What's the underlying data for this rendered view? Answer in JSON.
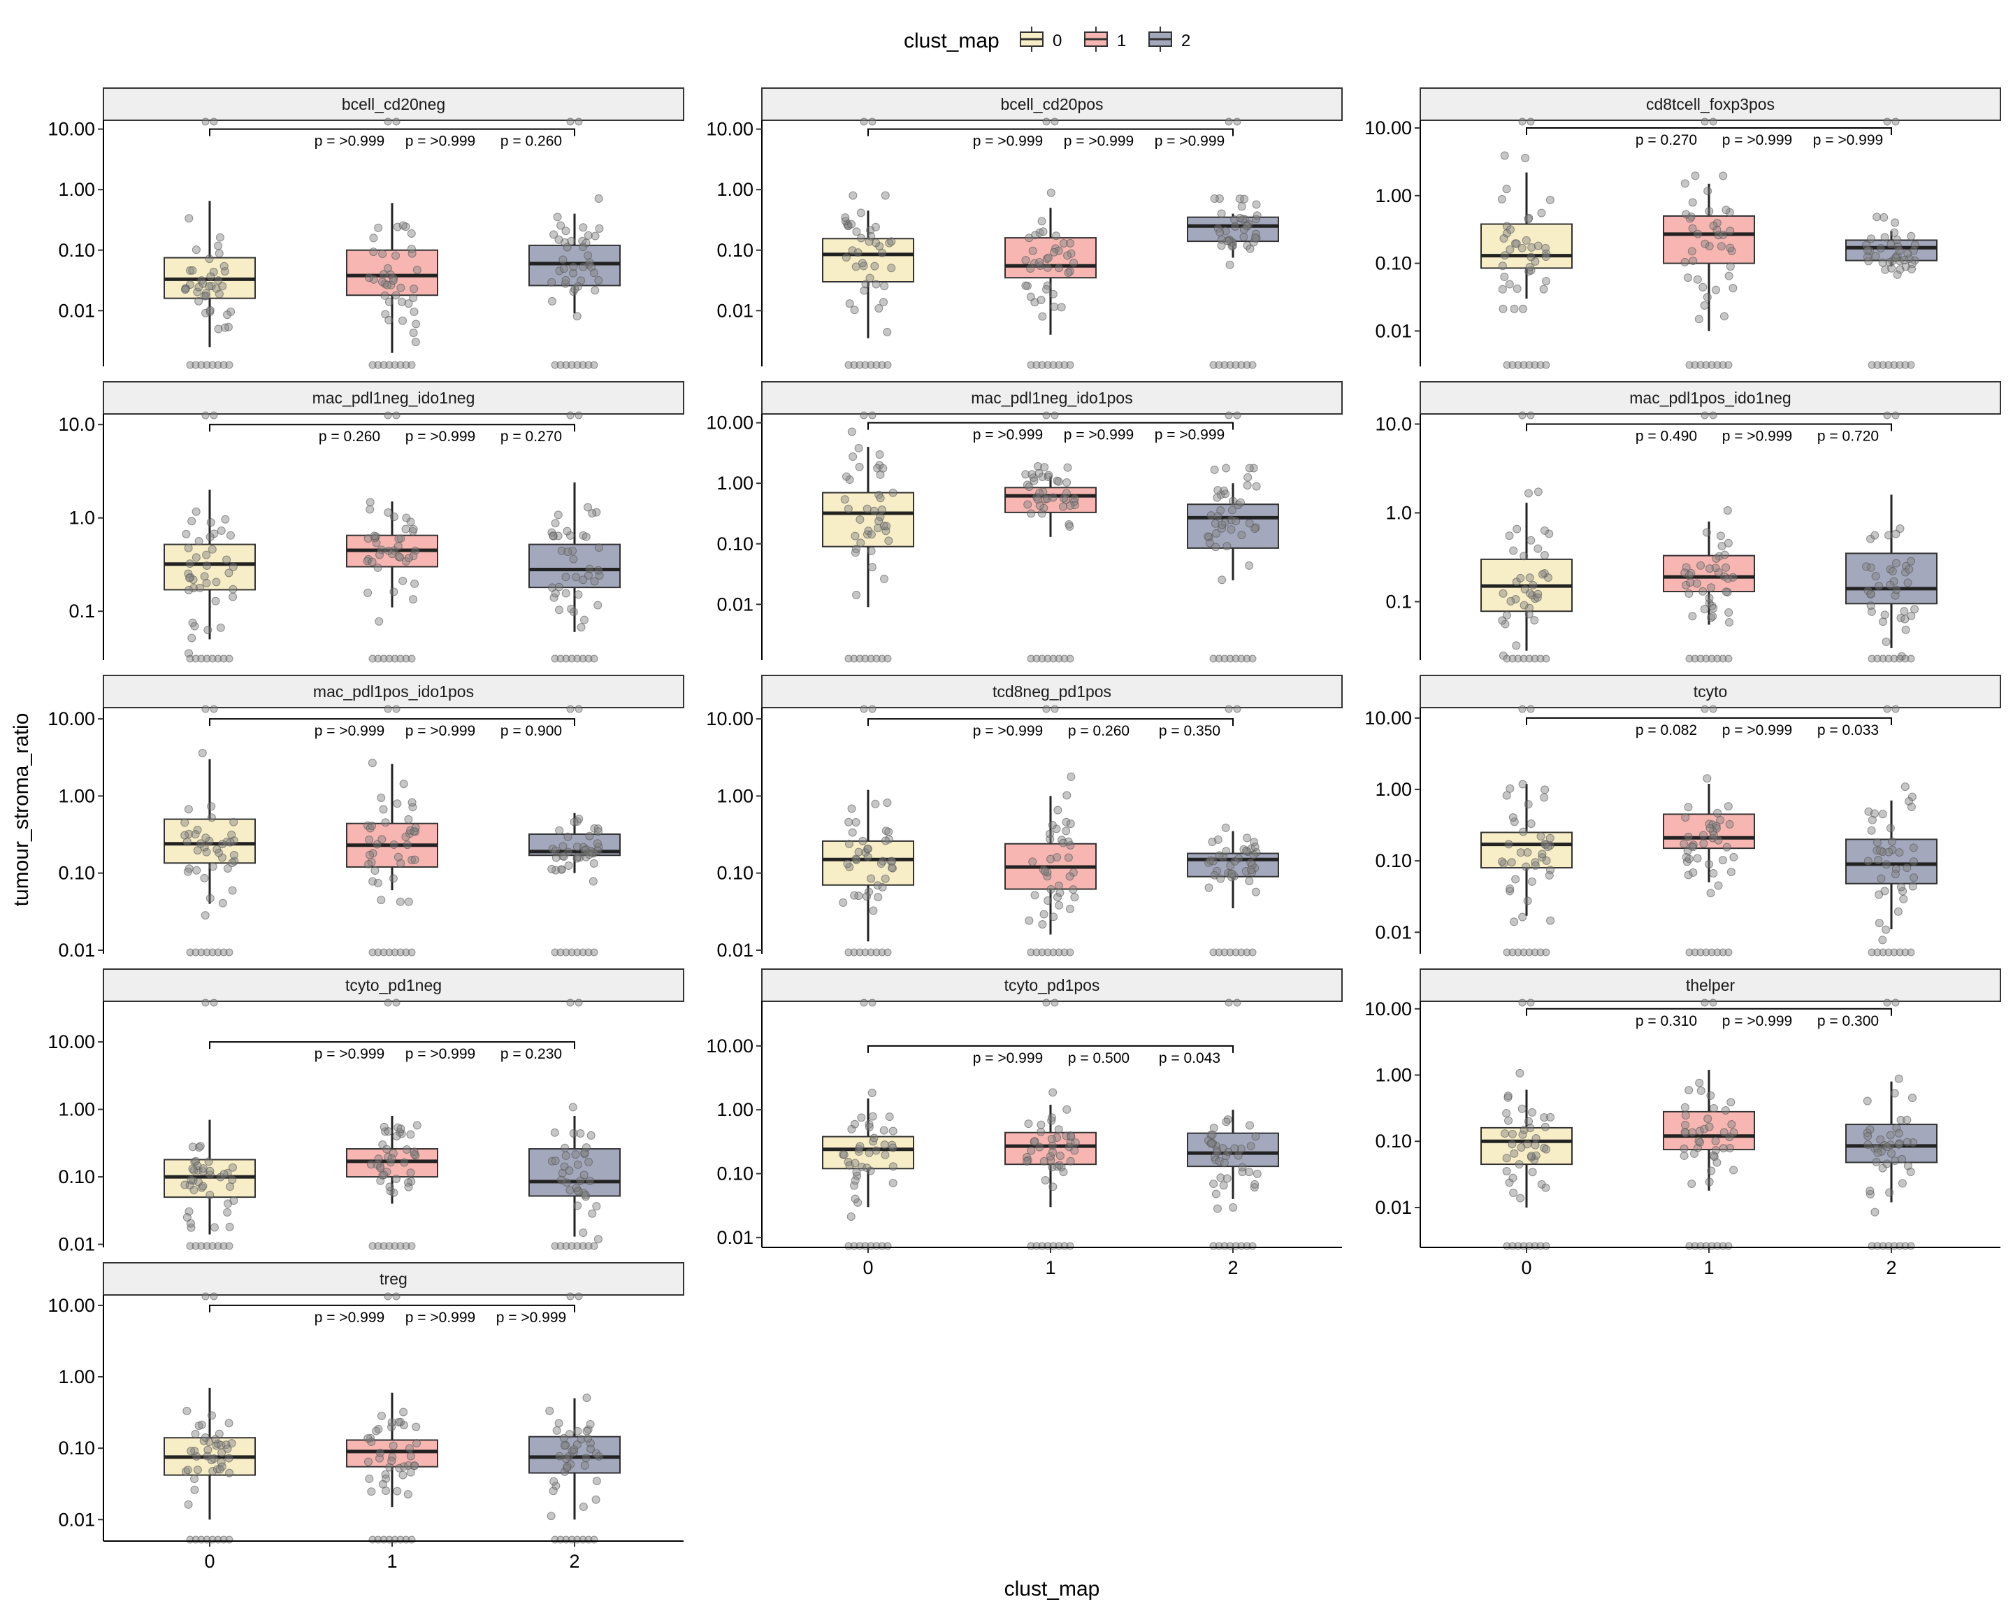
{
  "chart_data": {
    "type": "box",
    "y_scale": "log10",
    "xlabel": "clust_map",
    "ylabel": "tumour_stroma_ratio",
    "categories": [
      "0",
      "1",
      "2"
    ],
    "legend": {
      "title": "clust_map",
      "position": "top",
      "items": [
        {
          "label": "0",
          "color": "#F7EDC7"
        },
        {
          "label": "1",
          "color": "#F7B6B2"
        },
        {
          "label": "2",
          "color": "#A3A8BC"
        }
      ]
    },
    "colors": {
      "fill_0": "#F7EDC7",
      "fill_1": "#F7B6B2",
      "fill_2": "#A3A8BC",
      "strip_bg": "#EFEFEF",
      "points": "#808080"
    },
    "facets": [
      {
        "title": "bcell_cd20neg",
        "y_ticks": [
          "10.00",
          "1.00",
          "0.10",
          "0.01"
        ],
        "ylim": [
          0.0012,
          14
        ],
        "p_labels": [
          "p = >0.999",
          "p = >0.999",
          "p = 0.260"
        ],
        "boxes": [
          {
            "category": "0",
            "q1": 0.016,
            "median": 0.033,
            "q3": 0.075,
            "whisker_low": 0.0025,
            "whisker_high": 0.65
          },
          {
            "category": "1",
            "q1": 0.018,
            "median": 0.038,
            "q3": 0.1,
            "whisker_low": 0.002,
            "whisker_high": 0.6
          },
          {
            "category": "2",
            "q1": 0.026,
            "median": 0.06,
            "q3": 0.12,
            "whisker_low": 0.009,
            "whisker_high": 0.4
          }
        ]
      },
      {
        "title": "bcell_cd20pos",
        "y_ticks": [
          "10.00",
          "1.00",
          "0.10",
          "0.01"
        ],
        "ylim": [
          0.0012,
          14
        ],
        "p_labels": [
          "p = >0.999",
          "p = >0.999",
          "p = >0.999"
        ],
        "boxes": [
          {
            "category": "0",
            "q1": 0.03,
            "median": 0.085,
            "q3": 0.155,
            "whisker_low": 0.0035,
            "whisker_high": 0.45
          },
          {
            "category": "1",
            "q1": 0.035,
            "median": 0.055,
            "q3": 0.16,
            "whisker_low": 0.004,
            "whisker_high": 0.5
          },
          {
            "category": "2",
            "q1": 0.14,
            "median": 0.25,
            "q3": 0.35,
            "whisker_low": 0.075,
            "whisker_high": 0.4
          }
        ]
      },
      {
        "title": "cd8tcell_foxp3pos",
        "y_ticks": [
          "10.00",
          "1.00",
          "0.10",
          "0.01"
        ],
        "ylim": [
          0.003,
          13
        ],
        "p_labels": [
          "p = 0.270",
          "p = >0.999",
          "p = >0.999"
        ],
        "boxes": [
          {
            "category": "0",
            "q1": 0.085,
            "median": 0.13,
            "q3": 0.38,
            "whisker_low": 0.03,
            "whisker_high": 2.2
          },
          {
            "category": "1",
            "q1": 0.1,
            "median": 0.27,
            "q3": 0.5,
            "whisker_low": 0.01,
            "whisker_high": 1.5
          },
          {
            "category": "2",
            "q1": 0.11,
            "median": 0.17,
            "q3": 0.22,
            "whisker_low": 0.09,
            "whisker_high": 0.3
          }
        ]
      },
      {
        "title": "mac_pdl1neg_ido1neg",
        "y_ticks": [
          "10.0",
          "1.0",
          "0.1"
        ],
        "ylim": [
          0.03,
          13
        ],
        "p_labels": [
          "p = 0.260",
          "p = >0.999",
          "p = 0.270"
        ],
        "boxes": [
          {
            "category": "0",
            "q1": 0.17,
            "median": 0.32,
            "q3": 0.52,
            "whisker_low": 0.05,
            "whisker_high": 2.0
          },
          {
            "category": "1",
            "q1": 0.3,
            "median": 0.45,
            "q3": 0.65,
            "whisker_low": 0.11,
            "whisker_high": 1.5
          },
          {
            "category": "2",
            "q1": 0.18,
            "median": 0.28,
            "q3": 0.52,
            "whisker_low": 0.06,
            "whisker_high": 2.4
          }
        ]
      },
      {
        "title": "mac_pdl1neg_ido1pos",
        "y_ticks": [
          "10.00",
          "1.00",
          "0.10",
          "0.01"
        ],
        "ylim": [
          0.0012,
          14
        ],
        "p_labels": [
          "p = >0.999",
          "p = >0.999",
          "p = >0.999"
        ],
        "boxes": [
          {
            "category": "0",
            "q1": 0.09,
            "median": 0.32,
            "q3": 0.7,
            "whisker_low": 0.009,
            "whisker_high": 4.0
          },
          {
            "category": "1",
            "q1": 0.33,
            "median": 0.62,
            "q3": 0.85,
            "whisker_low": 0.13,
            "whisker_high": 1.3
          },
          {
            "category": "2",
            "q1": 0.085,
            "median": 0.27,
            "q3": 0.45,
            "whisker_low": 0.025,
            "whisker_high": 1.0
          }
        ]
      },
      {
        "title": "mac_pdl1pos_ido1neg",
        "y_ticks": [
          "10.0",
          "1.0",
          "0.1"
        ],
        "ylim": [
          0.022,
          13
        ],
        "p_labels": [
          "p = 0.490",
          "p = >0.999",
          "p = 0.720"
        ],
        "boxes": [
          {
            "category": "0",
            "q1": 0.078,
            "median": 0.15,
            "q3": 0.3,
            "whisker_low": 0.028,
            "whisker_high": 1.3
          },
          {
            "category": "1",
            "q1": 0.13,
            "median": 0.19,
            "q3": 0.33,
            "whisker_low": 0.055,
            "whisker_high": 0.8
          },
          {
            "category": "2",
            "q1": 0.095,
            "median": 0.14,
            "q3": 0.35,
            "whisker_low": 0.03,
            "whisker_high": 1.6
          }
        ]
      },
      {
        "title": "mac_pdl1pos_ido1pos",
        "y_ticks": [
          "10.00",
          "1.00",
          "0.10",
          "0.01"
        ],
        "ylim": [
          0.009,
          14
        ],
        "p_labels": [
          "p = >0.999",
          "p = >0.999",
          "p = 0.900"
        ],
        "boxes": [
          {
            "category": "0",
            "q1": 0.135,
            "median": 0.24,
            "q3": 0.5,
            "whisker_low": 0.04,
            "whisker_high": 3.0
          },
          {
            "category": "1",
            "q1": 0.12,
            "median": 0.23,
            "q3": 0.44,
            "whisker_low": 0.06,
            "whisker_high": 2.6
          },
          {
            "category": "2",
            "q1": 0.17,
            "median": 0.19,
            "q3": 0.32,
            "whisker_low": 0.1,
            "whisker_high": 0.6
          }
        ]
      },
      {
        "title": "tcd8neg_pd1pos",
        "y_ticks": [
          "10.00",
          "1.00",
          "0.10",
          "0.01"
        ],
        "ylim": [
          0.009,
          14
        ],
        "p_labels": [
          "p = >0.999",
          "p = 0.260",
          "p = 0.350"
        ],
        "boxes": [
          {
            "category": "0",
            "q1": 0.07,
            "median": 0.15,
            "q3": 0.26,
            "whisker_low": 0.013,
            "whisker_high": 1.2
          },
          {
            "category": "1",
            "q1": 0.062,
            "median": 0.12,
            "q3": 0.24,
            "whisker_low": 0.016,
            "whisker_high": 1.0
          },
          {
            "category": "2",
            "q1": 0.09,
            "median": 0.15,
            "q3": 0.18,
            "whisker_low": 0.035,
            "whisker_high": 0.35
          }
        ]
      },
      {
        "title": "tcyto",
        "y_ticks": [
          "10.00",
          "1.00",
          "0.10",
          "0.01"
        ],
        "ylim": [
          0.005,
          14
        ],
        "p_labels": [
          "p = 0.082",
          "p = >0.999",
          "p = 0.033"
        ],
        "boxes": [
          {
            "category": "0",
            "q1": 0.08,
            "median": 0.17,
            "q3": 0.25,
            "whisker_low": 0.017,
            "whisker_high": 1.2
          },
          {
            "category": "1",
            "q1": 0.15,
            "median": 0.21,
            "q3": 0.45,
            "whisker_low": 0.05,
            "whisker_high": 1.2
          },
          {
            "category": "2",
            "q1": 0.048,
            "median": 0.09,
            "q3": 0.2,
            "whisker_low": 0.011,
            "whisker_high": 0.7
          }
        ]
      },
      {
        "title": "tcyto_pd1neg",
        "y_ticks": [
          "10.00",
          "1.00",
          "0.10",
          "0.01"
        ],
        "ylim": [
          0.009,
          40
        ],
        "p_labels": [
          "p = >0.999",
          "p = >0.999",
          "p = 0.230"
        ],
        "boxes": [
          {
            "category": "0",
            "q1": 0.05,
            "median": 0.1,
            "q3": 0.18,
            "whisker_low": 0.014,
            "whisker_high": 0.7
          },
          {
            "category": "1",
            "q1": 0.1,
            "median": 0.17,
            "q3": 0.26,
            "whisker_low": 0.04,
            "whisker_high": 0.8
          },
          {
            "category": "2",
            "q1": 0.052,
            "median": 0.085,
            "q3": 0.26,
            "whisker_low": 0.013,
            "whisker_high": 0.8
          }
        ]
      },
      {
        "title": "tcyto_pd1pos",
        "y_ticks": [
          "10.00",
          "1.00",
          "0.10",
          "0.01"
        ],
        "ylim": [
          0.007,
          50
        ],
        "p_labels": [
          "p = >0.999",
          "p = 0.500",
          "p = 0.043"
        ],
        "boxes": [
          {
            "category": "0",
            "q1": 0.12,
            "median": 0.24,
            "q3": 0.38,
            "whisker_low": 0.03,
            "whisker_high": 1.5
          },
          {
            "category": "1",
            "q1": 0.14,
            "median": 0.27,
            "q3": 0.44,
            "whisker_low": 0.03,
            "whisker_high": 1.2
          },
          {
            "category": "2",
            "q1": 0.13,
            "median": 0.21,
            "q3": 0.43,
            "whisker_low": 0.04,
            "whisker_high": 1.0
          }
        ]
      },
      {
        "title": "thelper",
        "y_ticks": [
          "10.00",
          "1.00",
          "0.10",
          "0.01"
        ],
        "ylim": [
          0.0025,
          13
        ],
        "p_labels": [
          "p = 0.310",
          "p = >0.999",
          "p = 0.300"
        ],
        "boxes": [
          {
            "category": "0",
            "q1": 0.045,
            "median": 0.1,
            "q3": 0.16,
            "whisker_low": 0.01,
            "whisker_high": 0.6
          },
          {
            "category": "1",
            "q1": 0.075,
            "median": 0.12,
            "q3": 0.28,
            "whisker_low": 0.018,
            "whisker_high": 1.2
          },
          {
            "category": "2",
            "q1": 0.048,
            "median": 0.085,
            "q3": 0.18,
            "whisker_low": 0.012,
            "whisker_high": 0.8
          }
        ]
      },
      {
        "title": "treg",
        "y_ticks": [
          "10.00",
          "1.00",
          "0.10",
          "0.01"
        ],
        "ylim": [
          0.005,
          14
        ],
        "p_labels": [
          "p = >0.999",
          "p = >0.999",
          "p = >0.999"
        ],
        "boxes": [
          {
            "category": "0",
            "q1": 0.042,
            "median": 0.075,
            "q3": 0.14,
            "whisker_low": 0.01,
            "whisker_high": 0.7
          },
          {
            "category": "1",
            "q1": 0.055,
            "median": 0.09,
            "q3": 0.13,
            "whisker_low": 0.015,
            "whisker_high": 0.6
          },
          {
            "category": "2",
            "q1": 0.045,
            "median": 0.075,
            "q3": 0.145,
            "whisker_low": 0.01,
            "whisker_high": 0.5
          }
        ]
      }
    ]
  }
}
